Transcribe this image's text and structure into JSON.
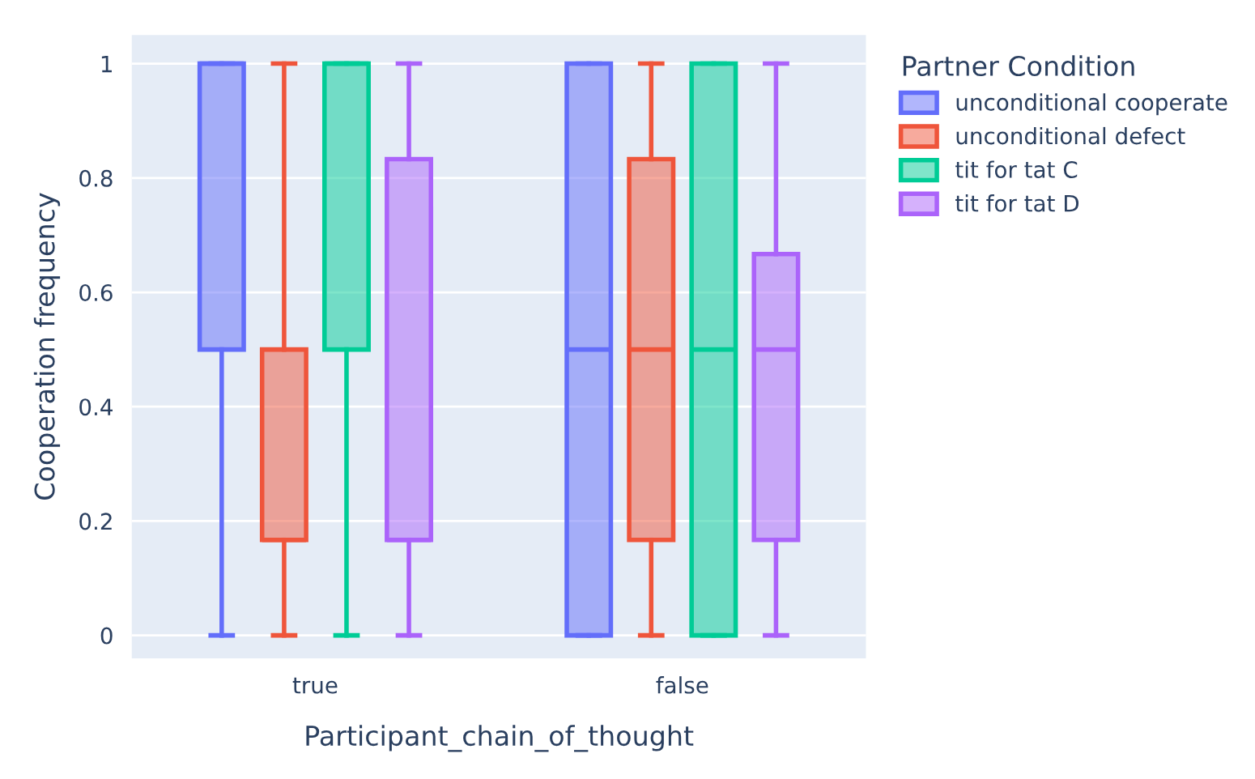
{
  "chart_data": {
    "type": "box",
    "xlabel": "Participant_chain_of_thought",
    "ylabel": "Cooperation frequency",
    "legend_title": "Partner Condition",
    "categories": [
      "true",
      "false"
    ],
    "series": [
      {
        "name": "unconditional cooperate",
        "color": "#636efa",
        "boxes": [
          {
            "low": 0,
            "q1": 0.5,
            "median": 1,
            "q3": 1,
            "high": 1
          },
          {
            "low": 0,
            "q1": 0,
            "median": 0.5,
            "q3": 1,
            "high": 1
          }
        ]
      },
      {
        "name": "unconditional defect",
        "color": "#ef553b",
        "boxes": [
          {
            "low": 0,
            "q1": 0.167,
            "median": 0.167,
            "q3": 0.5,
            "high": 1
          },
          {
            "low": 0,
            "q1": 0.167,
            "median": 0.5,
            "q3": 0.833,
            "high": 1
          }
        ]
      },
      {
        "name": "tit for tat C",
        "color": "#00cc96",
        "boxes": [
          {
            "low": 0,
            "q1": 0.5,
            "median": 1,
            "q3": 1,
            "high": 1
          },
          {
            "low": 0,
            "q1": 0,
            "median": 0.5,
            "q3": 1,
            "high": 1
          }
        ]
      },
      {
        "name": "tit for tat D",
        "color": "#ab63fa",
        "boxes": [
          {
            "low": 0,
            "q1": 0.167,
            "median": 0.167,
            "q3": 0.833,
            "high": 1
          },
          {
            "low": 0,
            "q1": 0.167,
            "median": 0.5,
            "q3": 0.667,
            "high": 1
          }
        ]
      }
    ],
    "ylim": [
      -0.04,
      1.05
    ],
    "yticks": [
      0,
      0.2,
      0.4,
      0.6,
      0.8,
      1
    ],
    "grid": "y",
    "legend": "top right"
  }
}
